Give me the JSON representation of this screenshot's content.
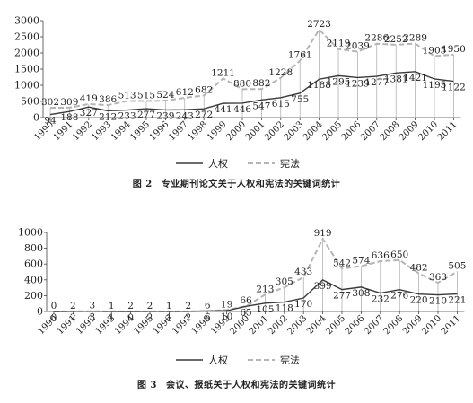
{
  "chart_data": [
    {
      "type": "line",
      "caption": "图 2   专业期刊论文关于人权和宪法的关键词统计",
      "caption_num": "图 2",
      "caption_text": "专业期刊论文关于人权和宪法的关键词统计",
      "categories": [
        "1990",
        "1991",
        "1992",
        "1993",
        "1994",
        "1995",
        "1996",
        "1997",
        "1998",
        "1999",
        "2000",
        "2001",
        "2002",
        "2003",
        "2004",
        "2005",
        "2006",
        "2007",
        "2008",
        "2009",
        "2010",
        "2011"
      ],
      "series": [
        {
          "name": "人权",
          "style": "solid",
          "color": "#3a3a3a",
          "values": [
            94,
            188,
            327,
            212,
            233,
            277,
            239,
            243,
            272,
            441,
            446,
            547,
            615,
            755,
            1188,
            1295,
            1239,
            1277,
            1381,
            1421,
            1195,
            1122
          ]
        },
        {
          "name": "宪法",
          "style": "dashed",
          "color": "#b5b5b5",
          "values": [
            302,
            309,
            419,
            386,
            513,
            515,
            524,
            612,
            682,
            1211,
            880,
            882,
            1228,
            1761,
            2723,
            2119,
            2039,
            2286,
            2252,
            2289,
            1905,
            1950
          ]
        }
      ],
      "ylim": [
        0,
        3000
      ],
      "yticks": [
        0,
        500,
        1000,
        1500,
        2000,
        2500,
        3000
      ],
      "grid": false,
      "legend": [
        "人权",
        "宪法"
      ],
      "legend_position": "bottom"
    },
    {
      "type": "line",
      "caption": "图 3   会议、报纸关于人权和宪法的关键词统计",
      "caption_num": "图 3",
      "caption_text": "会议、报纸关于人权和宪法的关键词统计",
      "categories": [
        "1990",
        "1991",
        "1992",
        "1993",
        "1994",
        "1995",
        "1996",
        "1997",
        "1998",
        "1999",
        "2000",
        "2001",
        "2002",
        "2003",
        "2004",
        "2005",
        "2006",
        "2007",
        "2008",
        "2009",
        "2010",
        "2011"
      ],
      "series": [
        {
          "name": "人权",
          "style": "solid",
          "color": "#3a3a3a",
          "values": [
            0,
            2,
            3,
            1,
            0,
            2,
            1,
            2,
            6,
            10,
            65,
            105,
            118,
            170,
            399,
            277,
            308,
            232,
            276,
            220,
            210,
            221
          ]
        },
        {
          "name": "宪法",
          "style": "dashed",
          "color": "#b5b5b5",
          "values": [
            0,
            2,
            3,
            1,
            2,
            2,
            1,
            2,
            6,
            19,
            66,
            213,
            305,
            433,
            919,
            542,
            574,
            636,
            650,
            482,
            363,
            505
          ]
        }
      ],
      "ylim": [
        0,
        1000
      ],
      "yticks": [
        0,
        200,
        400,
        600,
        800,
        1000
      ],
      "grid": false,
      "legend": [
        "人权",
        "宪法"
      ],
      "legend_position": "bottom"
    }
  ]
}
